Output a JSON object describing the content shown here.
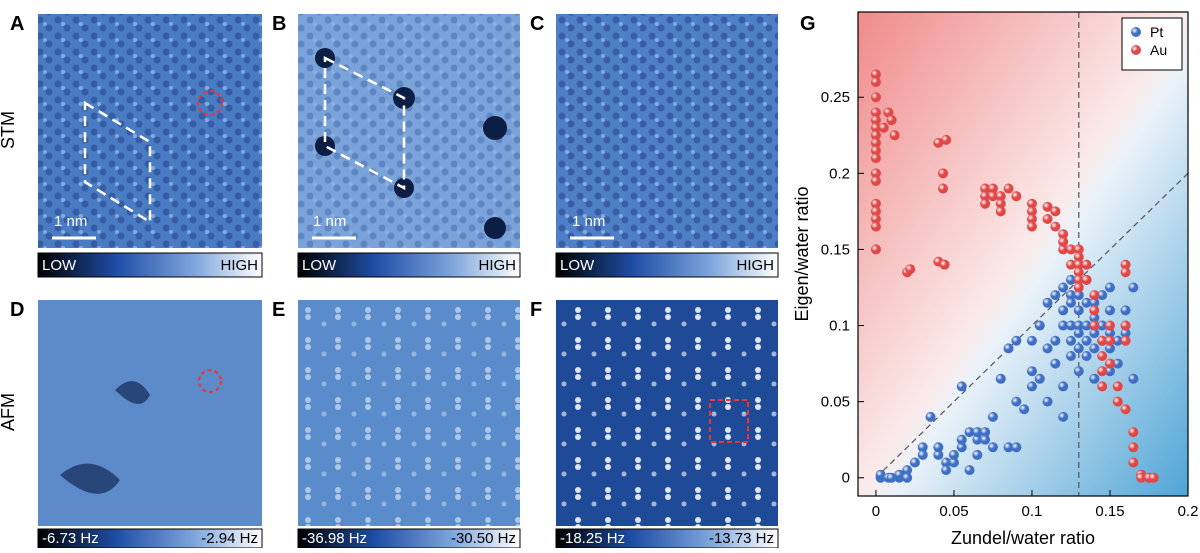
{
  "panels": {
    "letters": [
      "A",
      "B",
      "C",
      "D",
      "E",
      "F",
      "G"
    ],
    "row_labels": [
      "STM",
      "AFM"
    ],
    "scale_bars": [
      "1 nm",
      "1 nm",
      "1 nm"
    ],
    "colorbars": [
      [
        "LOW",
        "HIGH"
      ],
      [
        "LOW",
        "HIGH"
      ],
      [
        "LOW",
        "HIGH"
      ],
      [
        "-6.73 Hz",
        "-2.94 Hz"
      ],
      [
        "-36.98 Hz",
        "-30.50 Hz"
      ],
      [
        "-18.25 Hz",
        "-13.73 Hz"
      ]
    ]
  },
  "chart_data": {
    "type": "scatter",
    "xlabel": "Zundel/water ratio",
    "ylabel": "Eigen/water ratio",
    "xlim": [
      -0.0115,
      0.2
    ],
    "ylim": [
      -0.012,
      0.306
    ],
    "xticks": [
      0,
      0.05,
      0.1,
      0.15,
      0.2
    ],
    "yticks": [
      0,
      0.05,
      0.1,
      0.15,
      0.2,
      0.25
    ],
    "legend": "top-right",
    "vline": 0.13,
    "diag_line": {
      "x": [
        0,
        0.2
      ],
      "y": [
        0,
        0.2
      ]
    },
    "series": [
      {
        "name": "Pt",
        "color": "#3f6fc4",
        "x": [
          0.003,
          0.003,
          0.008,
          0.01,
          0.015,
          0.015,
          0.02,
          0.02,
          0.025,
          0.03,
          0.03,
          0.035,
          0.04,
          0.04,
          0.045,
          0.045,
          0.05,
          0.05,
          0.055,
          0.055,
          0.055,
          0.06,
          0.06,
          0.065,
          0.065,
          0.065,
          0.07,
          0.07,
          0.075,
          0.075,
          0.08,
          0.085,
          0.085,
          0.09,
          0.09,
          0.09,
          0.095,
          0.1,
          0.1,
          0.1,
          0.105,
          0.105,
          0.11,
          0.11,
          0.11,
          0.115,
          0.115,
          0.115,
          0.12,
          0.12,
          0.12,
          0.12,
          0.12,
          0.125,
          0.125,
          0.125,
          0.125,
          0.125,
          0.125,
          0.13,
          0.13,
          0.13,
          0.13,
          0.13,
          0.13,
          0.13,
          0.135,
          0.135,
          0.135,
          0.135,
          0.135,
          0.14,
          0.14,
          0.14,
          0.14,
          0.14,
          0.145,
          0.145,
          0.145,
          0.15,
          0.15,
          0.15,
          0.15,
          0.15,
          0.155,
          0.155,
          0.16,
          0.16,
          0.165,
          0.165
        ],
        "values": [
          0,
          0.002,
          0,
          0,
          0,
          0.002,
          0.005,
          0,
          0.01,
          0.02,
          0.015,
          0.04,
          0.015,
          0.02,
          0.01,
          0.005,
          0.01,
          0.015,
          0.02,
          0.025,
          0.06,
          0.03,
          0.005,
          0.025,
          0.03,
          0.015,
          0.03,
          0.025,
          0.02,
          0.04,
          0.065,
          0.085,
          0.02,
          0.09,
          0.05,
          0.02,
          0.045,
          0.09,
          0.07,
          0.06,
          0.1,
          0.065,
          0.115,
          0.085,
          0.05,
          0.12,
          0.09,
          0.075,
          0.125,
          0.11,
          0.1,
          0.06,
          0.04,
          0.13,
          0.12,
          0.115,
          0.1,
          0.09,
          0.08,
          0.14,
          0.12,
          0.11,
          0.1,
          0.095,
          0.085,
          0.07,
          0.13,
          0.115,
          0.1,
          0.09,
          0.08,
          0.115,
          0.105,
          0.095,
          0.085,
          0.065,
          0.12,
          0.1,
          0.09,
          0.125,
          0.11,
          0.095,
          0.085,
          0.07,
          0.09,
          0.075,
          0.11,
          0.095,
          0.125,
          0.065
        ]
      },
      {
        "name": "Au",
        "color": "#e04848",
        "x": [
          0,
          0,
          0,
          0,
          0,
          0,
          0,
          0,
          0,
          0,
          0,
          0,
          0,
          0,
          0,
          0,
          0,
          0.005,
          0.008,
          0.01,
          0.012,
          0.02,
          0.022,
          0.04,
          0.045,
          0.043,
          0.043,
          0.04,
          0.044,
          0.07,
          0.07,
          0.07,
          0.075,
          0.075,
          0.08,
          0.08,
          0.08,
          0.085,
          0.09,
          0.1,
          0.1,
          0.1,
          0.1,
          0.11,
          0.11,
          0.115,
          0.115,
          0.12,
          0.12,
          0.12,
          0.125,
          0.125,
          0.13,
          0.13,
          0.13,
          0.13,
          0.13,
          0.13,
          0.135,
          0.135,
          0.14,
          0.14,
          0.14,
          0.145,
          0.145,
          0.145,
          0.145,
          0.15,
          0.15,
          0.15,
          0.155,
          0.155,
          0.16,
          0.16,
          0.16,
          0.16,
          0.16,
          0.165,
          0.165,
          0.165,
          0.17,
          0.17,
          0.175,
          0.175,
          0.178
        ],
        "values": [
          0.265,
          0.26,
          0.25,
          0.24,
          0.235,
          0.23,
          0.225,
          0.22,
          0.215,
          0.21,
          0.2,
          0.195,
          0.18,
          0.175,
          0.17,
          0.165,
          0.15,
          0.23,
          0.24,
          0.235,
          0.225,
          0.135,
          0.137,
          0.22,
          0.222,
          0.2,
          0.19,
          0.142,
          0.14,
          0.19,
          0.185,
          0.18,
          0.19,
          0.185,
          0.185,
          0.18,
          0.175,
          0.19,
          0.185,
          0.18,
          0.175,
          0.17,
          0.165,
          0.178,
          0.17,
          0.165,
          0.175,
          0.16,
          0.15,
          0.155,
          0.15,
          0.14,
          0.15,
          0.145,
          0.14,
          0.135,
          0.13,
          0.125,
          0.14,
          0.13,
          0.12,
          0.11,
          0.1,
          0.09,
          0.08,
          0.07,
          0.06,
          0.1,
          0.09,
          0.075,
          0.06,
          0.05,
          0.14,
          0.135,
          0.1,
          0.09,
          0.045,
          0.03,
          0.02,
          0.01,
          0.002,
          0,
          0,
          0,
          0
        ]
      }
    ]
  }
}
